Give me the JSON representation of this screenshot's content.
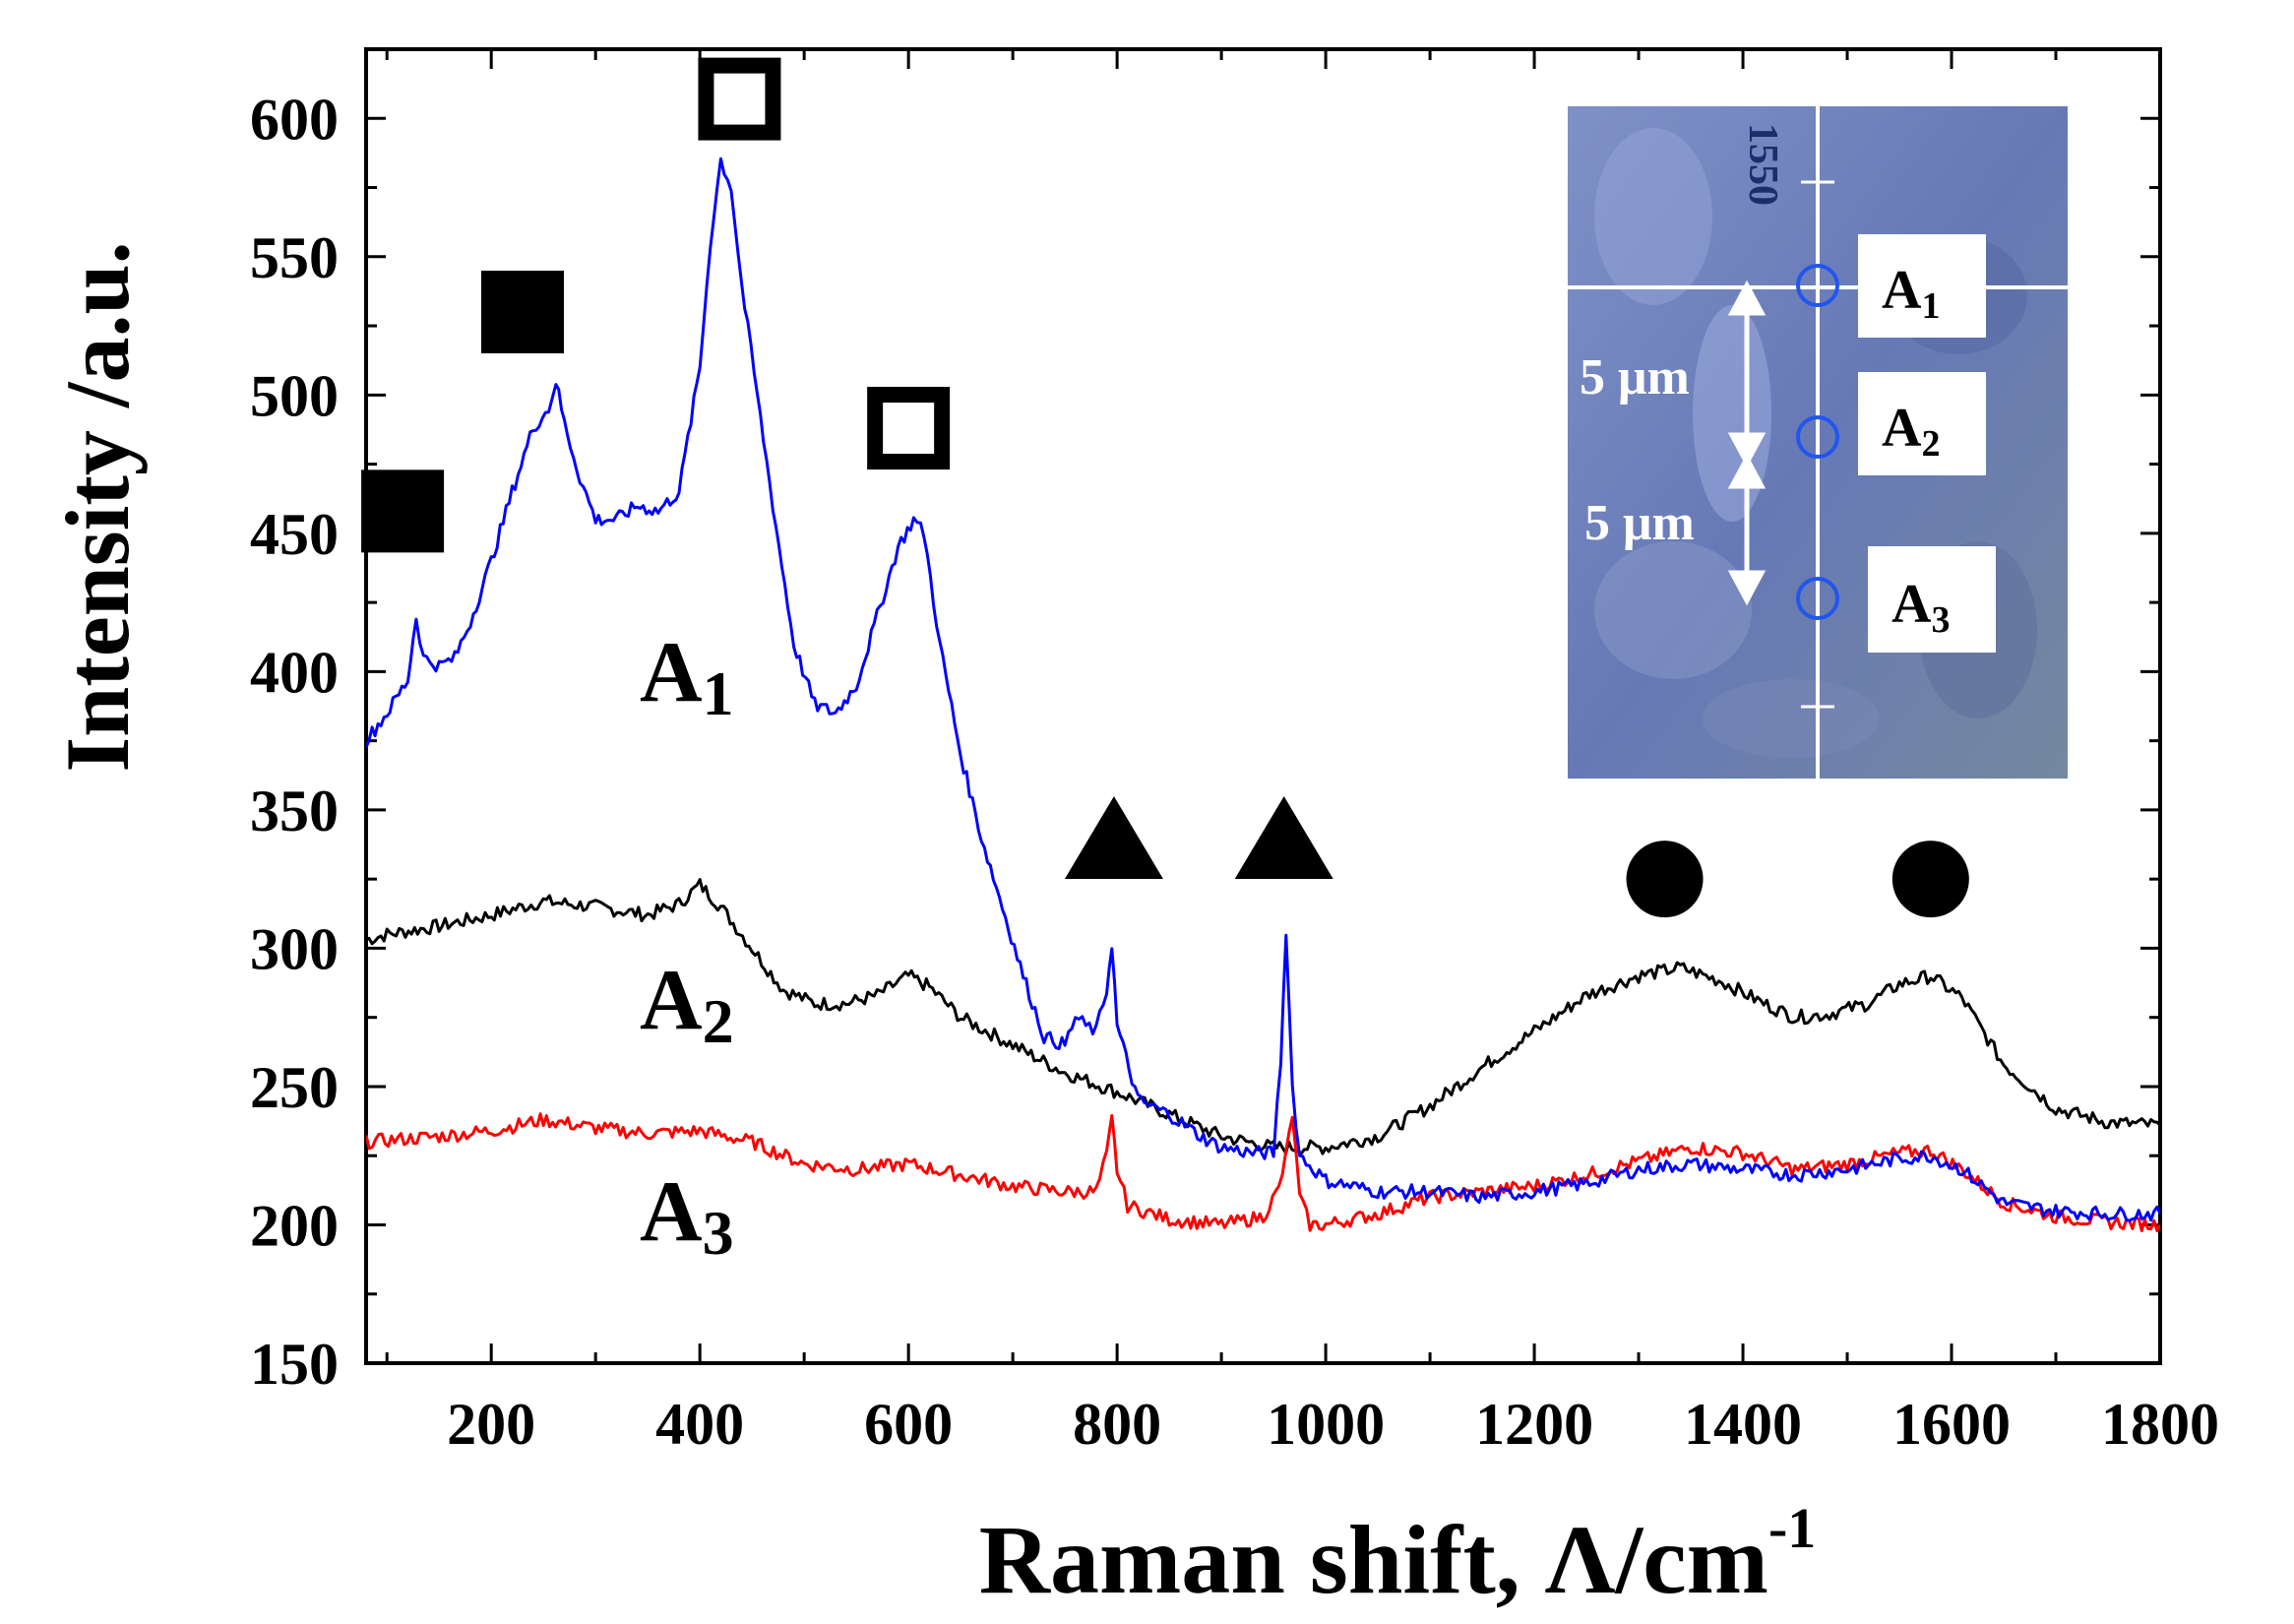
{
  "chart_data": {
    "type": "line",
    "xlabel": "Raman shift, Λ/cm",
    "xlabel_sup": "-1",
    "ylabel": "Intensity /a.u.",
    "xlim": [
      80,
      1800
    ],
    "ylim": [
      150,
      625
    ],
    "xticks": [
      200,
      400,
      600,
      800,
      1000,
      1200,
      1400,
      1600,
      1800
    ],
    "yticks": [
      150,
      200,
      250,
      300,
      350,
      400,
      450,
      500,
      550,
      600
    ],
    "series": [
      {
        "name": "A1",
        "label_main": "A",
        "label_sub": "1",
        "color": "#0000ff",
        "points": [
          [
            80,
            375
          ],
          [
            100,
            385
          ],
          [
            120,
            397
          ],
          [
            128,
            420
          ],
          [
            135,
            405
          ],
          [
            150,
            402
          ],
          [
            165,
            405
          ],
          [
            180,
            418
          ],
          [
            200,
            440
          ],
          [
            220,
            465
          ],
          [
            240,
            488
          ],
          [
            255,
            495
          ],
          [
            262,
            505
          ],
          [
            270,
            490
          ],
          [
            285,
            470
          ],
          [
            300,
            455
          ],
          [
            320,
            455
          ],
          [
            340,
            460
          ],
          [
            360,
            458
          ],
          [
            380,
            465
          ],
          [
            400,
            510
          ],
          [
            410,
            555
          ],
          [
            420,
            585
          ],
          [
            430,
            575
          ],
          [
            440,
            540
          ],
          [
            455,
            500
          ],
          [
            470,
            460
          ],
          [
            490,
            410
          ],
          [
            510,
            388
          ],
          [
            530,
            385
          ],
          [
            550,
            395
          ],
          [
            570,
            420
          ],
          [
            590,
            445
          ],
          [
            605,
            455
          ],
          [
            615,
            450
          ],
          [
            630,
            410
          ],
          [
            650,
            370
          ],
          [
            670,
            340
          ],
          [
            690,
            315
          ],
          [
            710,
            290
          ],
          [
            730,
            268
          ],
          [
            750,
            265
          ],
          [
            760,
            275
          ],
          [
            770,
            272
          ],
          [
            780,
            270
          ],
          [
            790,
            285
          ],
          [
            795,
            302
          ],
          [
            800,
            272
          ],
          [
            820,
            245
          ],
          [
            850,
            240
          ],
          [
            880,
            232
          ],
          [
            900,
            228
          ],
          [
            930,
            226
          ],
          [
            950,
            226
          ],
          [
            957,
            260
          ],
          [
            962,
            307
          ],
          [
            968,
            250
          ],
          [
            975,
            225
          ],
          [
            1000,
            216
          ],
          [
            1050,
            212
          ],
          [
            1100,
            212
          ],
          [
            1150,
            210
          ],
          [
            1200,
            212
          ],
          [
            1250,
            215
          ],
          [
            1300,
            220
          ],
          [
            1350,
            222
          ],
          [
            1400,
            220
          ],
          [
            1450,
            218
          ],
          [
            1500,
            220
          ],
          [
            1550,
            224
          ],
          [
            1580,
            225
          ],
          [
            1610,
            220
          ],
          [
            1650,
            208
          ],
          [
            1700,
            205
          ],
          [
            1750,
            204
          ],
          [
            1800,
            204
          ]
        ]
      },
      {
        "name": "A2",
        "label_main": "A",
        "label_sub": "2",
        "color": "#000000",
        "points": [
          [
            80,
            303
          ],
          [
            100,
            305
          ],
          [
            150,
            308
          ],
          [
            200,
            312
          ],
          [
            250,
            317
          ],
          [
            300,
            315
          ],
          [
            350,
            312
          ],
          [
            380,
            316
          ],
          [
            400,
            323
          ],
          [
            420,
            315
          ],
          [
            450,
            300
          ],
          [
            480,
            285
          ],
          [
            510,
            280
          ],
          [
            540,
            280
          ],
          [
            570,
            283
          ],
          [
            600,
            290
          ],
          [
            620,
            286
          ],
          [
            650,
            275
          ],
          [
            700,
            265
          ],
          [
            750,
            255
          ],
          [
            800,
            248
          ],
          [
            850,
            240
          ],
          [
            900,
            232
          ],
          [
            950,
            228
          ],
          [
            1000,
            228
          ],
          [
            1050,
            232
          ],
          [
            1100,
            243
          ],
          [
            1150,
            257
          ],
          [
            1200,
            270
          ],
          [
            1250,
            283
          ],
          [
            1300,
            290
          ],
          [
            1340,
            293
          ],
          [
            1380,
            288
          ],
          [
            1420,
            280
          ],
          [
            1450,
            275
          ],
          [
            1480,
            276
          ],
          [
            1520,
            280
          ],
          [
            1550,
            287
          ],
          [
            1580,
            290
          ],
          [
            1610,
            282
          ],
          [
            1650,
            258
          ],
          [
            1700,
            242
          ],
          [
            1750,
            237
          ],
          [
            1800,
            236
          ]
        ]
      },
      {
        "name": "A3",
        "label_main": "A",
        "label_sub": "3",
        "color": "#ff0000",
        "points": [
          [
            80,
            230
          ],
          [
            150,
            232
          ],
          [
            200,
            234
          ],
          [
            250,
            238
          ],
          [
            300,
            235
          ],
          [
            350,
            233
          ],
          [
            400,
            234
          ],
          [
            450,
            230
          ],
          [
            500,
            222
          ],
          [
            550,
            220
          ],
          [
            600,
            222
          ],
          [
            650,
            218
          ],
          [
            700,
            214
          ],
          [
            750,
            212
          ],
          [
            780,
            212
          ],
          [
            790,
            225
          ],
          [
            795,
            238
          ],
          [
            800,
            220
          ],
          [
            810,
            207
          ],
          [
            850,
            202
          ],
          [
            900,
            200
          ],
          [
            940,
            203
          ],
          [
            955,
            213
          ],
          [
            962,
            225
          ],
          [
            968,
            240
          ],
          [
            975,
            210
          ],
          [
            985,
            200
          ],
          [
            1000,
            200
          ],
          [
            1050,
            204
          ],
          [
            1100,
            210
          ],
          [
            1150,
            212
          ],
          [
            1200,
            214
          ],
          [
            1250,
            218
          ],
          [
            1300,
            223
          ],
          [
            1350,
            228
          ],
          [
            1400,
            226
          ],
          [
            1450,
            220
          ],
          [
            1500,
            222
          ],
          [
            1550,
            226
          ],
          [
            1580,
            227
          ],
          [
            1610,
            220
          ],
          [
            1650,
            208
          ],
          [
            1700,
            203
          ],
          [
            1750,
            201
          ],
          [
            1800,
            200
          ]
        ]
      }
    ],
    "markers": [
      {
        "type": "filled-square",
        "x": 115,
        "y": 458
      },
      {
        "type": "filled-square",
        "x": 230,
        "y": 530
      },
      {
        "type": "open-square",
        "x": 438,
        "y": 607
      },
      {
        "type": "open-square",
        "x": 600,
        "y": 488
      },
      {
        "type": "filled-triangle",
        "x": 797,
        "y": 340
      },
      {
        "type": "filled-triangle",
        "x": 960,
        "y": 340
      },
      {
        "type": "filled-circle",
        "x": 1325,
        "y": 325
      },
      {
        "type": "filled-circle",
        "x": 1580,
        "y": 325
      }
    ],
    "inset": {
      "scale_label": "1550",
      "points": [
        {
          "main": "A",
          "sub": "1"
        },
        {
          "main": "A",
          "sub": "2"
        },
        {
          "main": "A",
          "sub": "3"
        }
      ],
      "spacing_labels": [
        "5 μm",
        "5 μm"
      ]
    }
  }
}
